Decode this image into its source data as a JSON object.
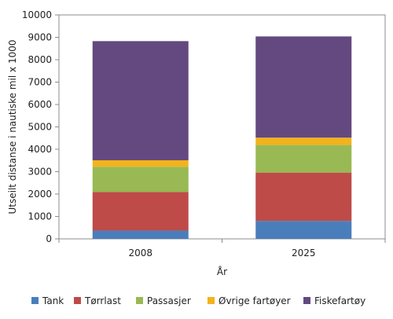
{
  "chart_data": {
    "type": "bar",
    "stacked": true,
    "xlabel": "År",
    "ylabel": "Utseilt distanse i nautiske mil x 1000",
    "ylim": [
      0,
      10000
    ],
    "yticks": [
      0,
      1000,
      2000,
      3000,
      4000,
      5000,
      6000,
      7000,
      8000,
      9000,
      10000
    ],
    "categories": [
      "2008",
      "2025"
    ],
    "grid": false,
    "legend_position": "bottom",
    "series": [
      {
        "name": "Tank",
        "color": "#4a7ebb",
        "values": [
          370,
          800
        ]
      },
      {
        "name": "Tørrlast",
        "color": "#be4b48",
        "values": [
          1720,
          2160
        ]
      },
      {
        "name": "Passasjer",
        "color": "#98b954",
        "values": [
          1130,
          1230
        ]
      },
      {
        "name": "Øvrige fartøyer",
        "color": "#f2b31d",
        "values": [
          290,
          330
        ]
      },
      {
        "name": "Fiskefartøy",
        "color": "#63497f",
        "values": [
          5320,
          4520
        ]
      }
    ]
  }
}
